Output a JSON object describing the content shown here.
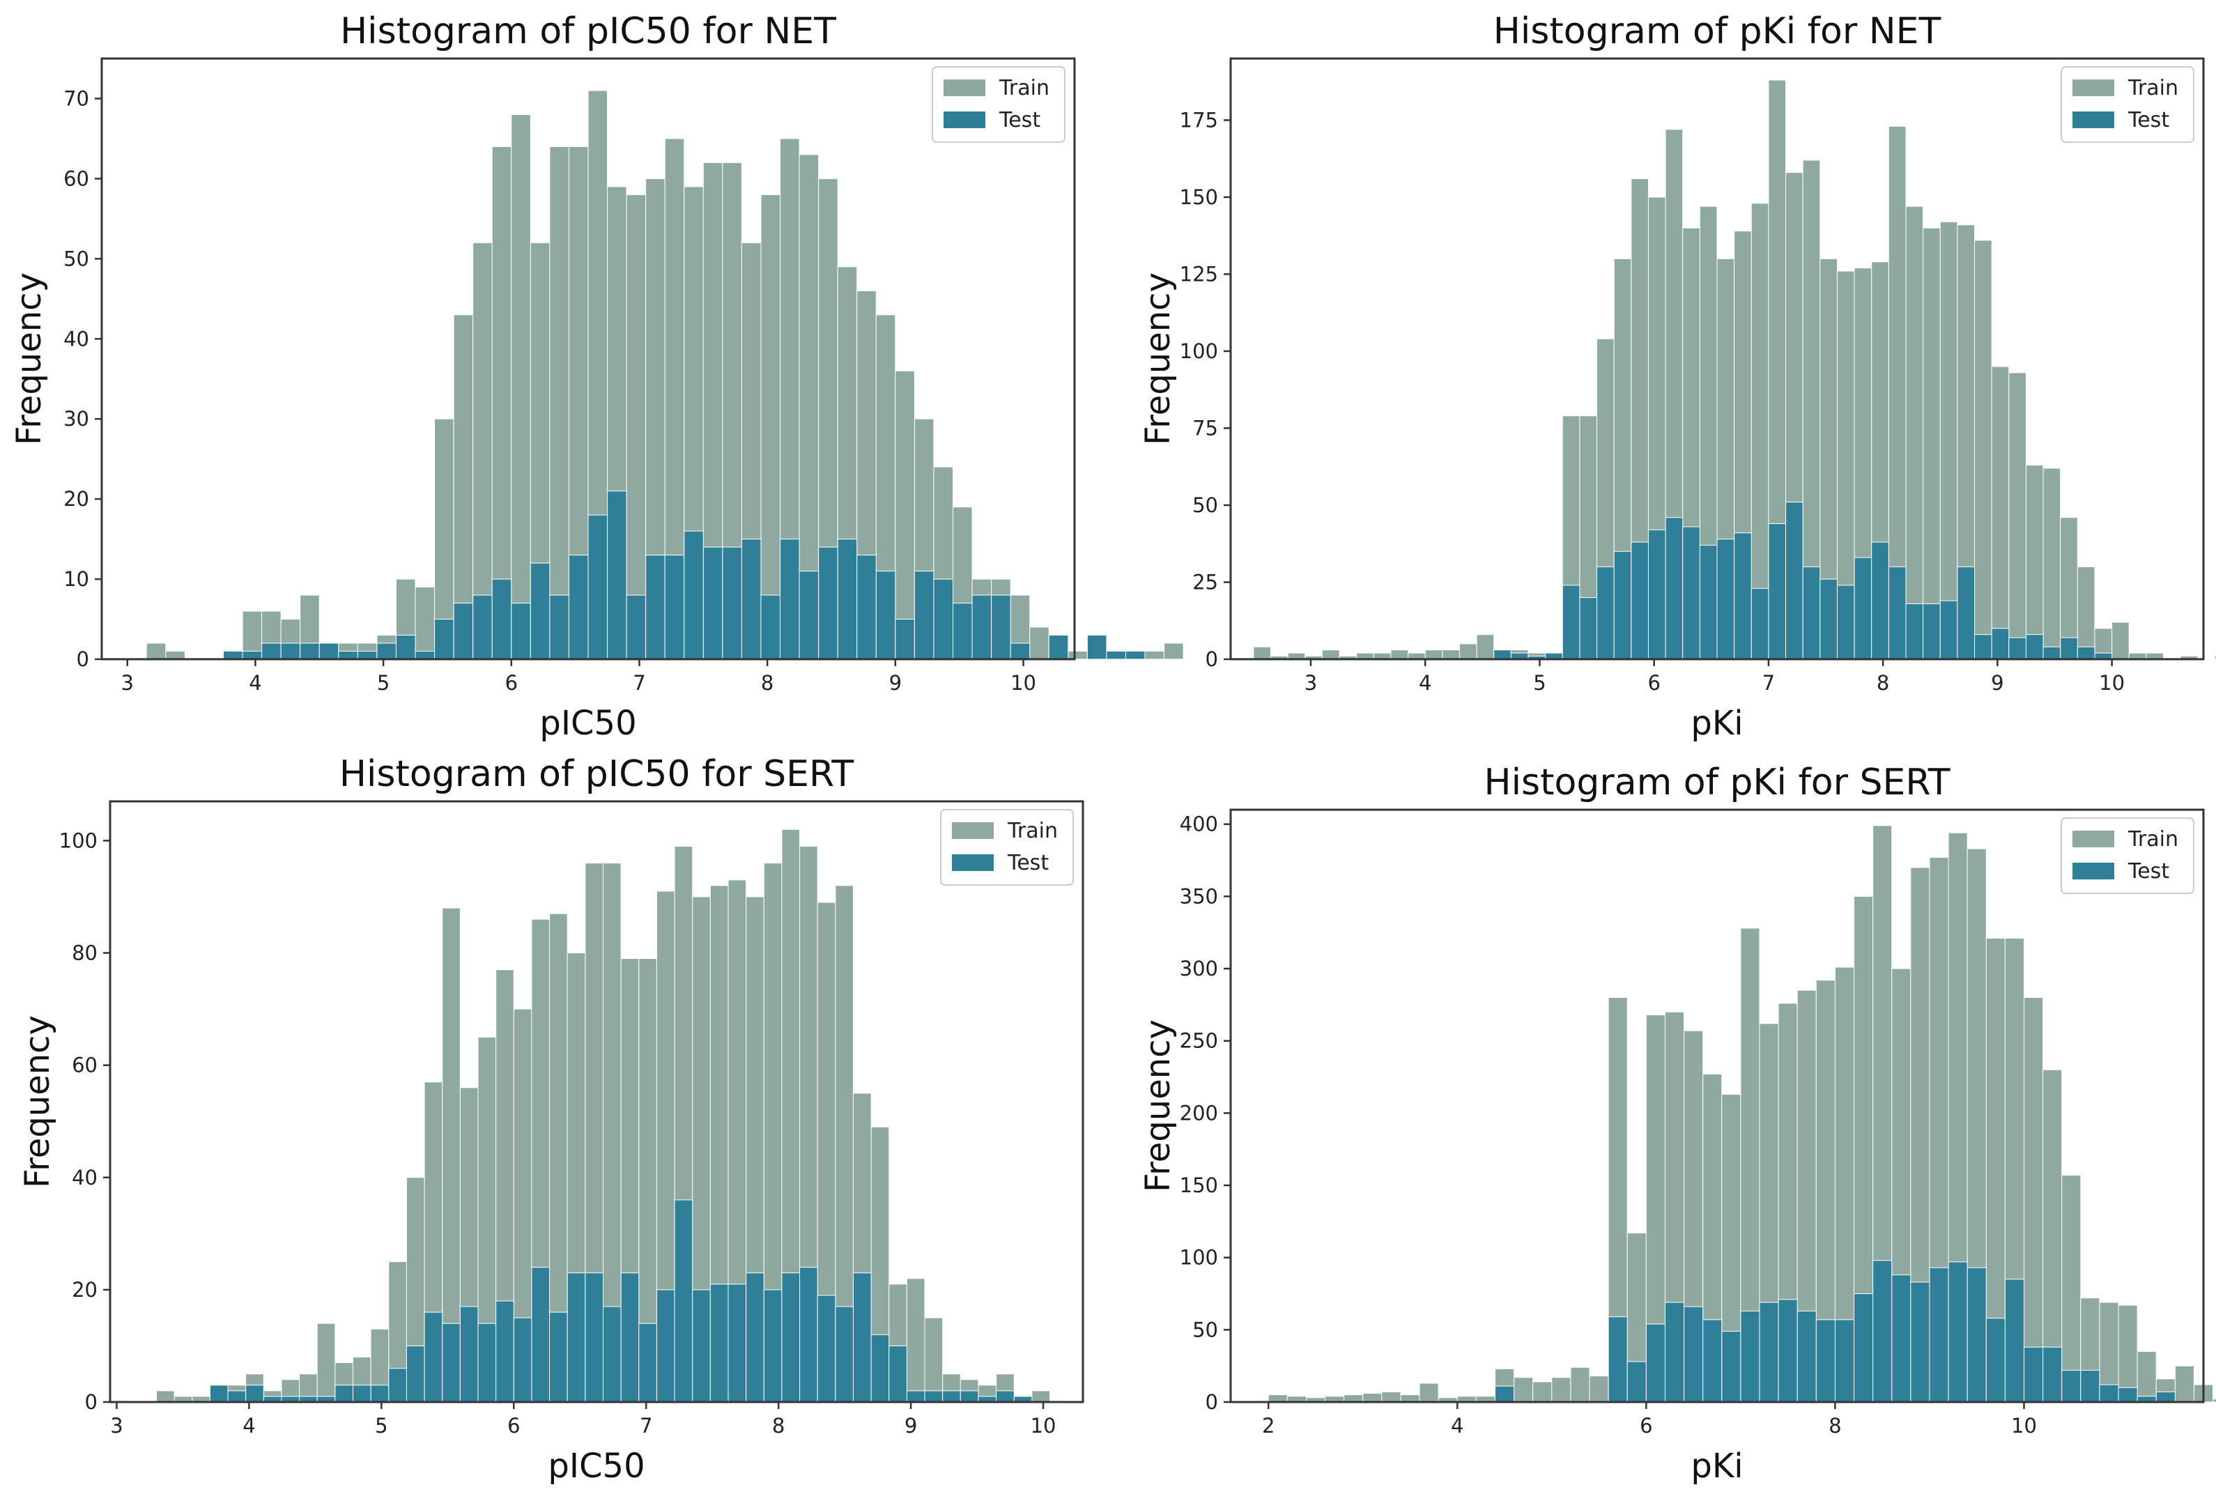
{
  "colors": {
    "train": "#8fa9a0",
    "test": "#2f7f98"
  },
  "chart_data": [
    {
      "type": "bar",
      "title": "Histogram of pIC50 for NET",
      "xlabel": "pIC50",
      "ylabel": "Frequency",
      "xlim": [
        2.8,
        10.4
      ],
      "ylim": [
        0,
        75
      ],
      "xticks": [
        3,
        4,
        5,
        6,
        7,
        8,
        9,
        10
      ],
      "yticks": [
        0,
        10,
        20,
        30,
        40,
        50,
        60,
        70
      ],
      "legend_position": "top-right",
      "bin_start": 3.0,
      "bin_width": 0.15,
      "series": [
        {
          "name": "Train",
          "values": [
            0,
            2,
            1,
            0,
            0,
            1,
            6,
            6,
            5,
            8,
            2,
            2,
            2,
            3,
            10,
            9,
            30,
            43,
            52,
            64,
            68,
            52,
            64,
            64,
            71,
            59,
            58,
            60,
            65,
            59,
            62,
            62,
            52,
            58,
            65,
            63,
            60,
            49,
            46,
            43,
            36,
            30,
            24,
            19,
            10,
            10,
            8,
            4,
            3,
            1,
            0,
            0,
            1,
            1,
            2
          ]
        },
        {
          "name": "Test",
          "values": [
            0,
            0,
            0,
            0,
            0,
            1,
            1,
            2,
            2,
            2,
            2,
            1,
            1,
            2,
            3,
            1,
            5,
            7,
            8,
            10,
            7,
            12,
            8,
            13,
            18,
            21,
            8,
            13,
            13,
            16,
            14,
            14,
            15,
            8,
            15,
            11,
            14,
            15,
            13,
            11,
            5,
            11,
            10,
            7,
            8,
            8,
            2,
            0,
            3,
            0,
            3,
            1,
            1,
            0,
            0
          ]
        }
      ]
    },
    {
      "type": "bar",
      "title": "Histogram of pKi for NET",
      "xlabel": "pKi",
      "ylabel": "Frequency",
      "xlim": [
        2.3,
        10.8
      ],
      "ylim": [
        0,
        195
      ],
      "xticks": [
        3,
        4,
        5,
        6,
        7,
        8,
        9,
        10
      ],
      "yticks": [
        0,
        25,
        50,
        75,
        100,
        125,
        150,
        175
      ],
      "legend_position": "top-right",
      "bin_start": 2.5,
      "bin_width": 0.15,
      "series": [
        {
          "name": "Train",
          "values": [
            4,
            1,
            2,
            1,
            3,
            1,
            2,
            2,
            3,
            2,
            3,
            3,
            5,
            8,
            3,
            3,
            2,
            2,
            79,
            79,
            104,
            130,
            156,
            150,
            172,
            140,
            147,
            130,
            139,
            148,
            188,
            158,
            162,
            130,
            126,
            127,
            129,
            173,
            147,
            140,
            142,
            141,
            136,
            95,
            93,
            63,
            62,
            46,
            30,
            10,
            12,
            2,
            2,
            0,
            1,
            0,
            1
          ]
        },
        {
          "name": "Test",
          "values": [
            0,
            0,
            0,
            0,
            0,
            0,
            0,
            0,
            0,
            0,
            0,
            0,
            0,
            0,
            3,
            2,
            1,
            2,
            24,
            20,
            30,
            35,
            38,
            42,
            46,
            43,
            37,
            39,
            41,
            23,
            44,
            51,
            30,
            26,
            24,
            33,
            38,
            30,
            18,
            18,
            19,
            30,
            8,
            10,
            7,
            8,
            4,
            7,
            4,
            2,
            0,
            0,
            0,
            0,
            0,
            0,
            0
          ]
        }
      ]
    },
    {
      "type": "bar",
      "title": "Histogram of pIC50 for SERT",
      "xlabel": "pIC50",
      "ylabel": "Frequency",
      "xlim": [
        2.95,
        10.3
      ],
      "ylim": [
        0,
        107
      ],
      "xticks": [
        3,
        4,
        5,
        6,
        7,
        8,
        9,
        10
      ],
      "yticks": [
        0,
        20,
        40,
        60,
        80,
        100
      ],
      "legend_position": "top-right",
      "bin_start": 3.3,
      "bin_width": 0.135,
      "series": [
        {
          "name": "Train",
          "values": [
            2,
            1,
            1,
            3,
            3,
            5,
            2,
            4,
            5,
            14,
            7,
            8,
            13,
            25,
            40,
            57,
            88,
            56,
            65,
            77,
            70,
            86,
            87,
            80,
            96,
            96,
            79,
            79,
            91,
            99,
            90,
            92,
            93,
            90,
            96,
            102,
            99,
            89,
            92,
            55,
            49,
            21,
            22,
            15,
            5,
            4,
            3,
            5,
            1,
            2
          ]
        },
        {
          "name": "Test",
          "values": [
            0,
            0,
            0,
            3,
            2,
            3,
            1,
            1,
            1,
            1,
            3,
            3,
            3,
            6,
            10,
            16,
            14,
            17,
            14,
            18,
            15,
            24,
            16,
            23,
            23,
            17,
            23,
            14,
            20,
            36,
            20,
            21,
            21,
            23,
            20,
            23,
            24,
            19,
            17,
            23,
            12,
            10,
            2,
            2,
            2,
            2,
            1,
            2,
            1,
            0
          ]
        }
      ]
    },
    {
      "type": "bar",
      "title": "Histogram of pKi for SERT",
      "xlabel": "pKi",
      "ylabel": "Frequency",
      "xlim": [
        1.6,
        11.9
      ],
      "ylim": [
        0,
        410
      ],
      "xticks": [
        2,
        4,
        6,
        8,
        10
      ],
      "yticks": [
        0,
        50,
        100,
        150,
        200,
        250,
        300,
        350,
        400
      ],
      "legend_position": "top-right",
      "bin_start": 2.0,
      "bin_width": 0.2,
      "series": [
        {
          "name": "Train",
          "values": [
            5,
            4,
            3,
            4,
            5,
            6,
            7,
            5,
            13,
            3,
            4,
            4,
            23,
            17,
            14,
            17,
            24,
            18,
            280,
            117,
            268,
            270,
            257,
            227,
            213,
            328,
            262,
            276,
            285,
            292,
            301,
            350,
            399,
            300,
            370,
            377,
            394,
            383,
            321,
            321,
            280,
            230,
            157,
            72,
            69,
            67,
            35,
            16,
            25,
            12,
            2,
            1,
            0,
            0,
            0
          ]
        },
        {
          "name": "Test",
          "values": [
            0,
            0,
            0,
            0,
            0,
            0,
            0,
            0,
            0,
            0,
            0,
            0,
            11,
            0,
            0,
            0,
            0,
            0,
            59,
            28,
            54,
            69,
            66,
            57,
            49,
            63,
            69,
            71,
            63,
            57,
            57,
            75,
            98,
            88,
            83,
            93,
            97,
            93,
            58,
            85,
            38,
            38,
            22,
            22,
            12,
            10,
            4,
            7,
            0,
            0,
            0,
            0,
            0,
            0,
            0
          ]
        }
      ]
    }
  ]
}
